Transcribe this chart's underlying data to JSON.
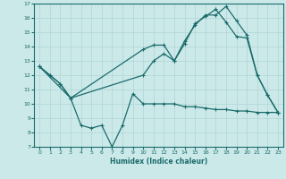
{
  "xlabel": "Humidex (Indice chaleur)",
  "xlim": [
    -0.5,
    23.5
  ],
  "ylim": [
    7,
    17
  ],
  "yticks": [
    7,
    8,
    9,
    10,
    11,
    12,
    13,
    14,
    15,
    16,
    17
  ],
  "xticks": [
    0,
    1,
    2,
    3,
    4,
    5,
    6,
    7,
    8,
    9,
    10,
    11,
    12,
    13,
    14,
    15,
    16,
    17,
    18,
    19,
    20,
    21,
    22,
    23
  ],
  "background_color": "#cce9e9",
  "line_color": "#1a6b6b",
  "line1_x": [
    0,
    1,
    2,
    3,
    4,
    5,
    6,
    7,
    8,
    9,
    10,
    11,
    12,
    13,
    14,
    15,
    16,
    17,
    18,
    19,
    20,
    21,
    22,
    23
  ],
  "line1_y": [
    12.6,
    12.0,
    11.4,
    10.4,
    8.5,
    8.3,
    8.5,
    7.0,
    8.5,
    10.7,
    10.0,
    10.0,
    10.0,
    10.0,
    9.8,
    9.8,
    9.7,
    9.6,
    9.6,
    9.5,
    9.5,
    9.4,
    9.4,
    9.4
  ],
  "line2_x": [
    0,
    1,
    2,
    3,
    10,
    11,
    12,
    13,
    14,
    15,
    16,
    17,
    18,
    19,
    20,
    21,
    22,
    23
  ],
  "line2_y": [
    12.6,
    12.0,
    11.4,
    10.4,
    13.8,
    14.1,
    14.1,
    13.0,
    14.4,
    15.5,
    16.2,
    16.2,
    16.8,
    15.8,
    14.8,
    12.0,
    10.6,
    9.4
  ],
  "line3_x": [
    0,
    3,
    10,
    11,
    12,
    13,
    14,
    15,
    16,
    17,
    18,
    19,
    20,
    21,
    22,
    23
  ],
  "line3_y": [
    12.6,
    10.4,
    12.0,
    13.0,
    13.5,
    13.0,
    14.2,
    15.6,
    16.1,
    16.6,
    15.7,
    14.7,
    14.6,
    12.0,
    10.6,
    9.4
  ]
}
